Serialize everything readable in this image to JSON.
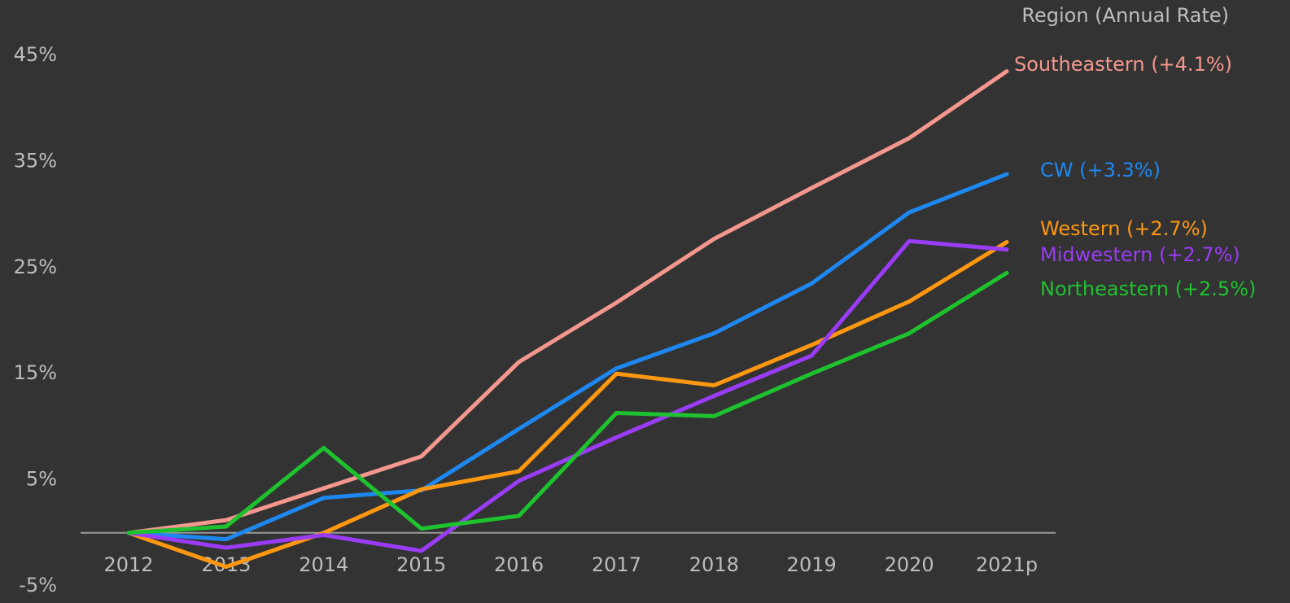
{
  "chart_data": {
    "type": "line",
    "legend_title": "Region (Annual Rate)",
    "categories": [
      "2012",
      "2013",
      "2014",
      "2015",
      "2016",
      "2017",
      "2018",
      "2019",
      "2020",
      "2021p"
    ],
    "series": [
      {
        "name": "Southeastern (+4.1%)",
        "color": "#f4978e",
        "values": [
          0,
          1.2,
          4.2,
          7.2,
          16.1,
          21.7,
          27.7,
          32.5,
          37.2,
          43.5
        ]
      },
      {
        "name": "CW (+3.3%)",
        "color": "#1e88f0",
        "values": [
          0,
          -0.6,
          3.3,
          4.0,
          9.8,
          15.5,
          18.8,
          23.5,
          30.2,
          33.8
        ]
      },
      {
        "name": "Western (+2.7%)",
        "color": "#ff9810",
        "values": [
          0,
          -3.2,
          0,
          4.1,
          5.8,
          15.0,
          13.9,
          17.7,
          21.8,
          27.4
        ]
      },
      {
        "name": "Midwestern (+2.7%)",
        "color": "#9a3cf5",
        "values": [
          0,
          -1.4,
          -0.2,
          -1.7,
          4.9,
          9.0,
          12.9,
          16.7,
          27.5,
          26.7
        ]
      },
      {
        "name": "Northeastern (+2.5%)",
        "color": "#1ec22e",
        "values": [
          0,
          0.6,
          8.0,
          0.4,
          1.6,
          11.3,
          11.0,
          15.0,
          18.8,
          24.5
        ]
      }
    ],
    "ylim": [
      -5,
      45
    ],
    "yticks": [
      {
        "value": -5,
        "label": "-5%"
      },
      {
        "value": 5,
        "label": "5%"
      },
      {
        "value": 15,
        "label": "15%"
      },
      {
        "value": 25,
        "label": "25%"
      },
      {
        "value": 35,
        "label": "35%"
      },
      {
        "value": 45,
        "label": "45%"
      }
    ]
  }
}
